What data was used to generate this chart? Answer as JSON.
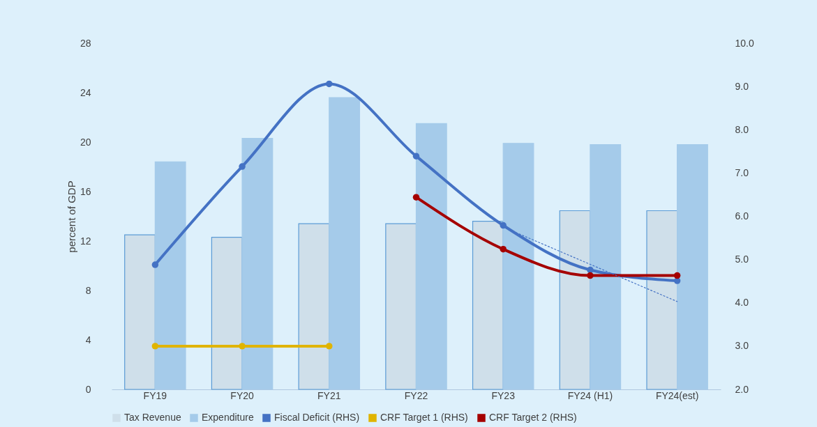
{
  "chart_data": {
    "type": "bar",
    "ylabel": "percent of GDP",
    "categories": [
      "FY19",
      "FY20",
      "FY21",
      "FY22",
      "FY23",
      "FY24 (H1)",
      "FY24(est)"
    ],
    "series": [
      {
        "name": "Tax Revenue",
        "color": "#cfdfea",
        "values": [
          12.5,
          12.3,
          13.4,
          13.4,
          13.6,
          14.45,
          14.45
        ]
      },
      {
        "name": "Expenditure",
        "color": "#a5cbea",
        "values": [
          18.4,
          20.3,
          23.6,
          21.5,
          19.9,
          19.8,
          19.8
        ]
      },
      {
        "name": "Fiscal Deficit (RHS)",
        "type": "line",
        "axis": "y2",
        "color": "#4472c4",
        "marker": "circle",
        "line_style": "solid",
        "values": [
          4.88,
          7.15,
          9.06,
          7.39,
          5.79,
          4.76,
          4.51
        ]
      },
      {
        "name": "CRF Target 1 (RHS)",
        "type": "line",
        "axis": "y2",
        "color": "#e0b400",
        "marker": "circle",
        "line_style": "solid",
        "values": [
          3.0,
          3.0,
          3.0,
          null,
          null,
          null,
          null
        ]
      },
      {
        "name": "CRF Target 2 (RHS)",
        "type": "line",
        "axis": "y2",
        "color": "#a50000",
        "marker": "circle",
        "line_style": "solid",
        "values": [
          null,
          null,
          null,
          6.44,
          5.24,
          4.63,
          4.63
        ]
      },
      {
        "type": "line",
        "axis": "y2",
        "color": "#4472c4",
        "marker": "none",
        "line_style": "dotted",
        "x": [
          "FY23",
          "FY24(est)"
        ],
        "values": [
          5.75,
          4.03
        ]
      }
    ],
    "ylim": [
      0,
      28
    ],
    "yticks": [
      0,
      4,
      8,
      12,
      16,
      20,
      24,
      28
    ],
    "y2lim": [
      2,
      10
    ],
    "y2ticks": [
      {
        "value": 2,
        "label": "2.0"
      },
      {
        "value": 3,
        "label": "3.0"
      },
      {
        "value": 4,
        "label": "4.0"
      },
      {
        "value": 5,
        "label": "5.0"
      },
      {
        "value": 6,
        "label": "6.0"
      },
      {
        "value": 7,
        "label": "7.0"
      },
      {
        "value": 8,
        "label": "8.0"
      },
      {
        "value": 9,
        "label": "9.0"
      },
      {
        "value": 10,
        "label": "10.0"
      }
    ],
    "grid": false,
    "legend": "bottom"
  }
}
